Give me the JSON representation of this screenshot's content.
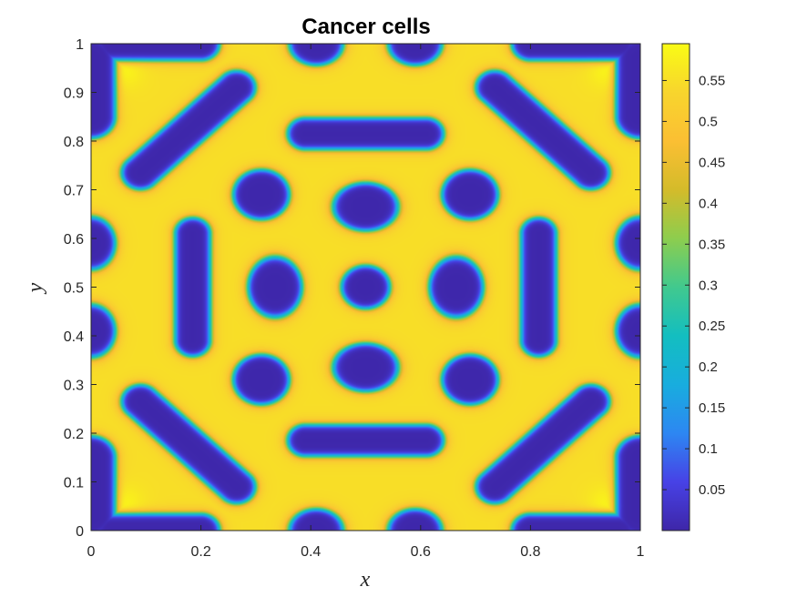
{
  "chart_data": {
    "type": "heatmap",
    "title": "Cancer cells",
    "xlabel": "x",
    "ylabel": "y",
    "xlim": [
      0,
      1
    ],
    "ylim": [
      0,
      1
    ],
    "x_ticks": [
      "0",
      "0.2",
      "0.4",
      "0.6",
      "0.8",
      "1"
    ],
    "y_ticks": [
      "0",
      "0.1",
      "0.2",
      "0.3",
      "0.4",
      "0.5",
      "0.6",
      "0.7",
      "0.8",
      "0.9",
      "1"
    ],
    "colorbar": {
      "range": [
        0,
        0.595
      ],
      "ticks": [
        "0.05",
        "0.1",
        "0.15",
        "0.2",
        "0.25",
        "0.3",
        "0.35",
        "0.4",
        "0.45",
        "0.5",
        "0.55"
      ],
      "tick_values": [
        0.05,
        0.1,
        0.15,
        0.2,
        0.25,
        0.3,
        0.35,
        0.4,
        0.45,
        0.5,
        0.55
      ],
      "colormap": "parula",
      "colormap_stops": [
        "#3e26a8",
        "#4742e6",
        "#2d87f2",
        "#18adde",
        "#13bec0",
        "#41c98e",
        "#8dcd4e",
        "#d4bb2a",
        "#fbbf33",
        "#f8d52d",
        "#f9fb15"
      ]
    },
    "background_value": 0.55,
    "cluster_value": 0.003,
    "clusters": [
      {
        "name": "center-blob",
        "type": "ellipse",
        "cx": 0.5,
        "cy": 0.5,
        "rx": 0.045,
        "ry": 0.045
      },
      {
        "name": "top-center-blob",
        "type": "ellipse",
        "cx": 0.5,
        "cy": 0.665,
        "rx": 0.06,
        "ry": 0.05
      },
      {
        "name": "bottom-center-blob",
        "type": "ellipse",
        "cx": 0.5,
        "cy": 0.335,
        "rx": 0.06,
        "ry": 0.05
      },
      {
        "name": "left-center-blob",
        "type": "ellipse",
        "cx": 0.335,
        "cy": 0.5,
        "rx": 0.05,
        "ry": 0.063
      },
      {
        "name": "right-center-blob",
        "type": "ellipse",
        "cx": 0.665,
        "cy": 0.5,
        "rx": 0.05,
        "ry": 0.063
      },
      {
        "name": "upper-left-blob",
        "type": "ellipse",
        "cx": 0.31,
        "cy": 0.69,
        "rx": 0.052,
        "ry": 0.052
      },
      {
        "name": "upper-right-blob",
        "type": "ellipse",
        "cx": 0.69,
        "cy": 0.69,
        "rx": 0.052,
        "ry": 0.052
      },
      {
        "name": "lower-left-blob",
        "type": "ellipse",
        "cx": 0.31,
        "cy": 0.31,
        "rx": 0.052,
        "ry": 0.052
      },
      {
        "name": "lower-right-blob",
        "type": "ellipse",
        "cx": 0.69,
        "cy": 0.31,
        "rx": 0.052,
        "ry": 0.052
      },
      {
        "name": "top-horizontal-bar",
        "type": "capsule",
        "x1": 0.39,
        "y1": 0.815,
        "x2": 0.61,
        "y2": 0.815,
        "r": 0.033
      },
      {
        "name": "bottom-horizontal-bar",
        "type": "capsule",
        "x1": 0.39,
        "y1": 0.185,
        "x2": 0.61,
        "y2": 0.185,
        "r": 0.033
      },
      {
        "name": "left-vertical-bar",
        "type": "capsule",
        "x1": 0.185,
        "y1": 0.39,
        "x2": 0.185,
        "y2": 0.61,
        "r": 0.033
      },
      {
        "name": "right-vertical-bar",
        "type": "capsule",
        "x1": 0.815,
        "y1": 0.39,
        "x2": 0.815,
        "y2": 0.61,
        "r": 0.033
      },
      {
        "name": "upper-left-diagonal",
        "type": "capsule",
        "x1": 0.09,
        "y1": 0.735,
        "x2": 0.265,
        "y2": 0.91,
        "r": 0.035
      },
      {
        "name": "upper-right-diagonal",
        "type": "capsule",
        "x1": 0.91,
        "y1": 0.735,
        "x2": 0.735,
        "y2": 0.91,
        "r": 0.035
      },
      {
        "name": "lower-left-diagonal",
        "type": "capsule",
        "x1": 0.09,
        "y1": 0.265,
        "x2": 0.265,
        "y2": 0.09,
        "r": 0.035
      },
      {
        "name": "lower-right-diagonal",
        "type": "capsule",
        "x1": 0.91,
        "y1": 0.265,
        "x2": 0.735,
        "y2": 0.09,
        "r": 0.035
      },
      {
        "name": "top-edge-left-blob",
        "type": "ellipse",
        "cx": 0.41,
        "cy": 1.0,
        "rx": 0.05,
        "ry": 0.045
      },
      {
        "name": "top-edge-right-blob",
        "type": "ellipse",
        "cx": 0.59,
        "cy": 1.0,
        "rx": 0.05,
        "ry": 0.045
      },
      {
        "name": "bottom-edge-left-blob",
        "type": "ellipse",
        "cx": 0.41,
        "cy": 0.0,
        "rx": 0.05,
        "ry": 0.045
      },
      {
        "name": "bottom-edge-right-blob",
        "type": "ellipse",
        "cx": 0.59,
        "cy": 0.0,
        "rx": 0.05,
        "ry": 0.045
      },
      {
        "name": "left-edge-upper-blob",
        "type": "ellipse",
        "cx": 0.0,
        "cy": 0.59,
        "rx": 0.045,
        "ry": 0.055
      },
      {
        "name": "left-edge-lower-blob",
        "type": "ellipse",
        "cx": 0.0,
        "cy": 0.41,
        "rx": 0.045,
        "ry": 0.055
      },
      {
        "name": "right-edge-upper-blob",
        "type": "ellipse",
        "cx": 1.0,
        "cy": 0.59,
        "rx": 0.045,
        "ry": 0.055
      },
      {
        "name": "right-edge-lower-blob",
        "type": "ellipse",
        "cx": 1.0,
        "cy": 0.41,
        "rx": 0.045,
        "ry": 0.055
      },
      {
        "name": "corner-tl-top",
        "type": "capsule",
        "x1": 0.04,
        "y1": 1.0,
        "x2": 0.2,
        "y2": 1.0,
        "r": 0.035
      },
      {
        "name": "corner-tl-left",
        "type": "capsule",
        "x1": 0.0,
        "y1": 0.85,
        "x2": 0.0,
        "y2": 0.97,
        "r": 0.045
      },
      {
        "name": "corner-tr-top",
        "type": "capsule",
        "x1": 0.8,
        "y1": 1.0,
        "x2": 0.96,
        "y2": 1.0,
        "r": 0.035
      },
      {
        "name": "corner-tr-right",
        "type": "capsule",
        "x1": 1.0,
        "y1": 0.85,
        "x2": 1.0,
        "y2": 0.97,
        "r": 0.045
      },
      {
        "name": "corner-bl-bottom",
        "type": "capsule",
        "x1": 0.04,
        "y1": 0.0,
        "x2": 0.2,
        "y2": 0.0,
        "r": 0.035
      },
      {
        "name": "corner-bl-left",
        "type": "capsule",
        "x1": 0.0,
        "y1": 0.03,
        "x2": 0.0,
        "y2": 0.15,
        "r": 0.045
      },
      {
        "name": "corner-br-bottom",
        "type": "capsule",
        "x1": 0.8,
        "y1": 0.0,
        "x2": 0.96,
        "y2": 0.0,
        "r": 0.035
      },
      {
        "name": "corner-br-right",
        "type": "capsule",
        "x1": 1.0,
        "y1": 0.03,
        "x2": 1.0,
        "y2": 0.15,
        "r": 0.045
      }
    ],
    "hotspots": [
      {
        "x": 0.05,
        "y": 0.95,
        "value": 0.595
      },
      {
        "x": 0.95,
        "y": 0.95,
        "value": 0.595
      },
      {
        "x": 0.05,
        "y": 0.05,
        "value": 0.595
      },
      {
        "x": 0.95,
        "y": 0.05,
        "value": 0.595
      }
    ]
  }
}
